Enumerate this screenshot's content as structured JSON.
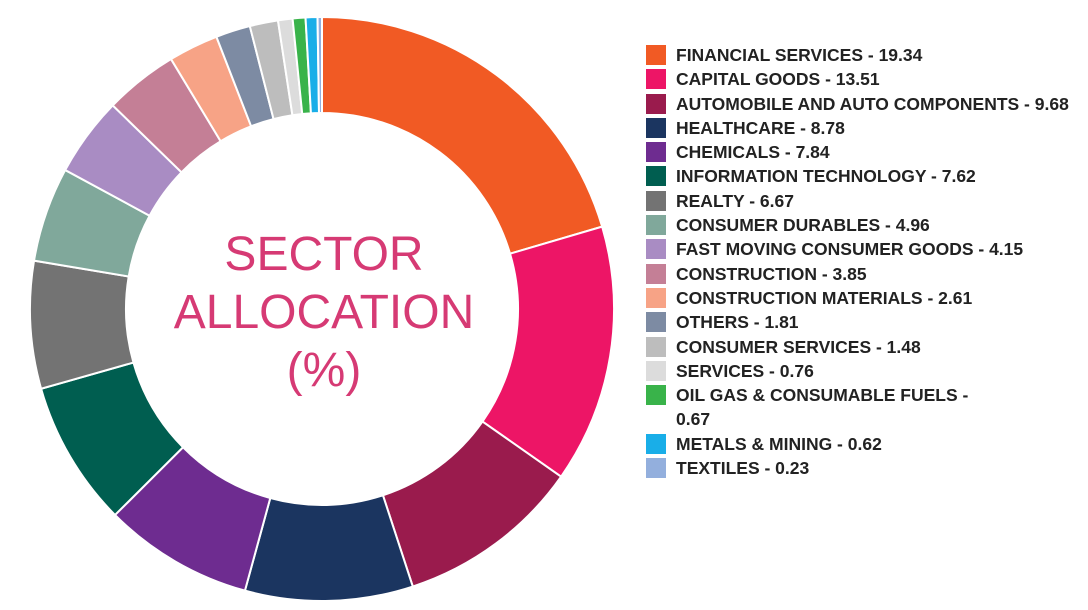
{
  "chart_data": {
    "type": "pie",
    "variant": "donut",
    "title_lines": [
      "SECTOR",
      "ALLOCATION",
      "(%)"
    ],
    "slices": [
      {
        "label": "FINANCIAL SERVICES - 19.34",
        "value": 19.34,
        "color": "#f15a24"
      },
      {
        "label": "CAPITAL GOODS - 13.51",
        "value": 13.51,
        "color": "#ed1566"
      },
      {
        "label": "AUTOMOBILE AND AUTO COMPONENTS - 9.68",
        "value": 9.68,
        "color": "#9a1b4d"
      },
      {
        "label": "HEALTHCARE - 8.78",
        "value": 8.78,
        "color": "#1b3560"
      },
      {
        "label": "CHEMICALS - 7.84",
        "value": 7.84,
        "color": "#6e2c90"
      },
      {
        "label": "INFORMATION TECHNOLOGY - 7.62",
        "value": 7.62,
        "color": "#005e50"
      },
      {
        "label": "REALTY - 6.67",
        "value": 6.67,
        "color": "#737373"
      },
      {
        "label": "CONSUMER DURABLES - 4.96",
        "value": 4.96,
        "color": "#80a89b"
      },
      {
        "label": "FAST MOVING CONSUMER GOODS - 4.15",
        "value": 4.15,
        "color": "#a98cc3"
      },
      {
        "label": "CONSTRUCTION - 3.85",
        "value": 3.85,
        "color": "#c47f96"
      },
      {
        "label": "CONSTRUCTION MATERIALS - 2.61",
        "value": 2.61,
        "color": "#f7a386"
      },
      {
        "label": "OTHERS - 1.81",
        "value": 1.81,
        "color": "#7d8ba3"
      },
      {
        "label": "CONSUMER SERVICES - 1.48",
        "value": 1.48,
        "color": "#bdbdbd"
      },
      {
        "label": "SERVICES - 0.76",
        "value": 0.76,
        "color": "#dcdcdc"
      },
      {
        "label": "OIL GAS & CONSUMABLE FUELS - 0.67",
        "value": 0.67,
        "color": "#39b34a"
      },
      {
        "label": "METALS & MINING - 0.62",
        "value": 0.62,
        "color": "#19aee8"
      },
      {
        "label": "TEXTILES - 0.23",
        "value": 0.23,
        "color": "#93afdd"
      }
    ],
    "legend_position": "right"
  }
}
